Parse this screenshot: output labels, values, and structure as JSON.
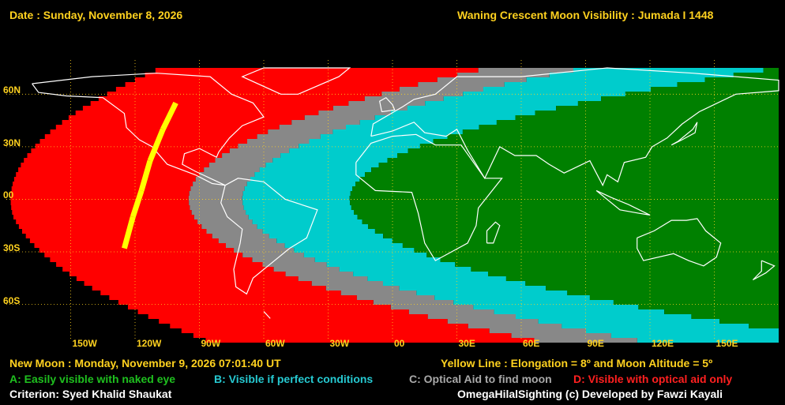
{
  "header": {
    "date": "Date : Sunday, November 8, 2026",
    "title": "Waning Crescent Moon Visibility : Jumada I 1448"
  },
  "map": {
    "lat_labels": [
      "60N",
      "30N",
      "00",
      "30S",
      "60S"
    ],
    "lon_labels": [
      "150W",
      "120W",
      "90W",
      "60W",
      "30W",
      "00",
      "30E",
      "60E",
      "90E",
      "120E",
      "150E"
    ],
    "zones": [
      {
        "code": "A",
        "color": "#008000"
      },
      {
        "code": "B",
        "color": "#00cccc"
      },
      {
        "code": "C",
        "color": "#888888"
      },
      {
        "code": "D",
        "color": "#ff0000"
      }
    ],
    "yellow_line_color": "#ffff00"
  },
  "footer": {
    "new_moon": "New Moon : Monday, November 9, 2026  07:01:40  UT",
    "yellow_line": "Yellow Line : Elongation = 8º  and Moon Altitude = 5º",
    "legend": {
      "a": "A: Easily visible with naked eye",
      "b": "B: Visible if perfect conditions",
      "c": "C: Optical Aid to find moon",
      "d": "D: Visible with optical aid only"
    },
    "criterion": "Criterion: Syed Khalid Shaukat",
    "credit": "OmegaHilalSighting  (c)  Developed by Fawzi Kayali"
  }
}
